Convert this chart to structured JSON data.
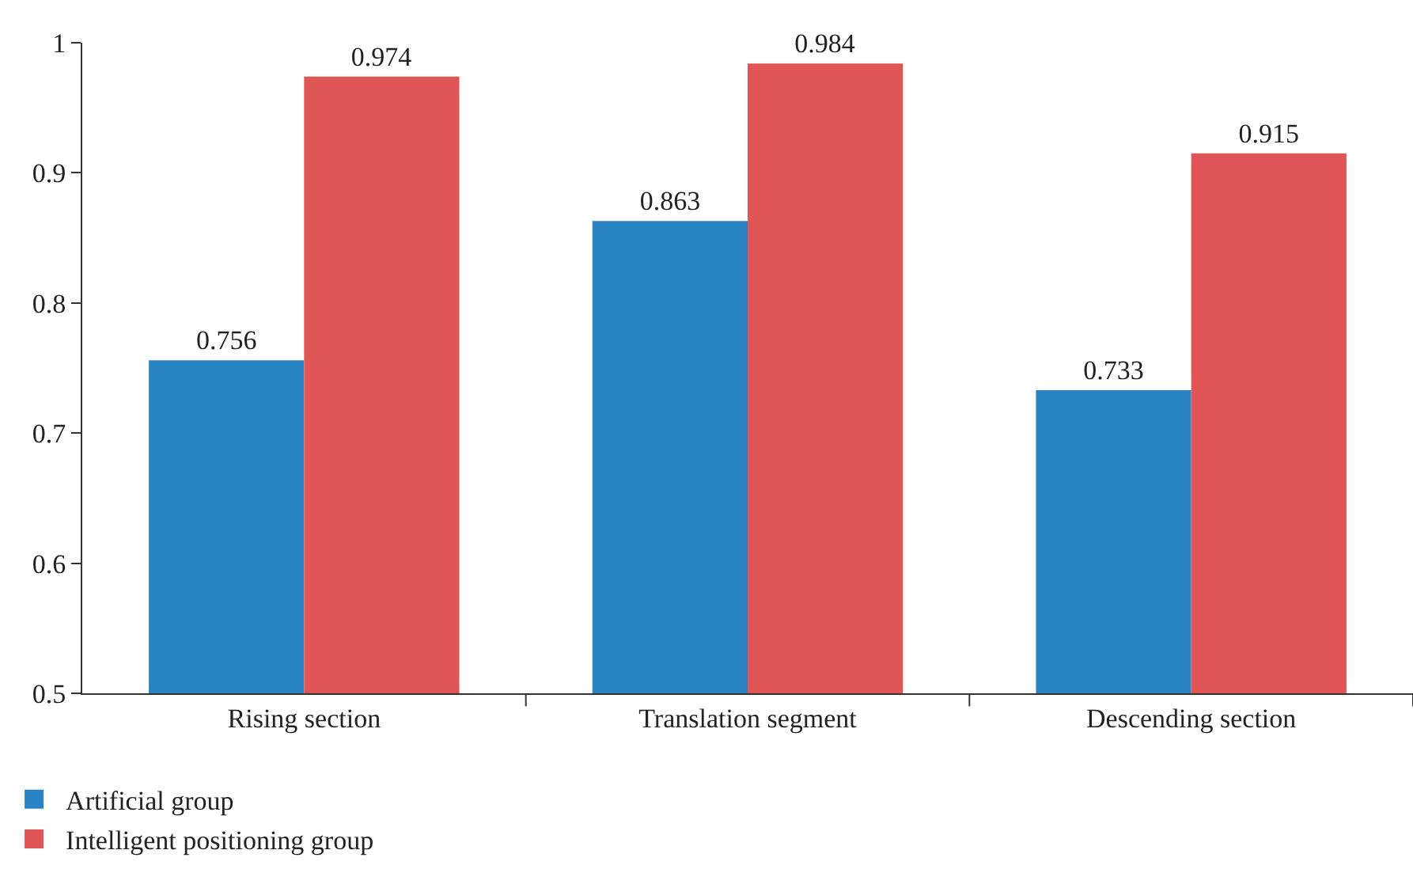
{
  "chart_data": {
    "type": "bar",
    "categories": [
      "Rising section",
      "Translation segment",
      "Descending section"
    ],
    "series": [
      {
        "name": "Artificial group",
        "color": "#2a84c4",
        "values": [
          0.756,
          0.863,
          0.733
        ]
      },
      {
        "name": "Intelligent positioning group",
        "color": "#e05555",
        "values": [
          0.974,
          0.984,
          0.915
        ]
      }
    ],
    "ylim": [
      0.5,
      1
    ],
    "yticks": [
      0.5,
      0.6,
      0.7,
      0.8,
      0.9,
      1
    ],
    "grid": false,
    "legend": "bottom left",
    "data_labels": true
  }
}
